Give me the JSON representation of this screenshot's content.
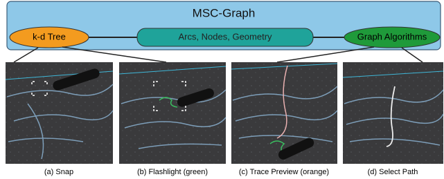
{
  "diagram": {
    "title": "MSC-Graph",
    "nodes": [
      {
        "label": "k-d Tree"
      },
      {
        "label": "Arcs, Nodes, Geometry"
      },
      {
        "label": "Graph Algorithms"
      }
    ],
    "panels": [
      {
        "caption": "(a) Snap"
      },
      {
        "caption": "(b) Flashlight (green)"
      },
      {
        "caption": "(c) Trace Preview (orange)"
      },
      {
        "caption": "(d) Select Path"
      }
    ]
  }
}
